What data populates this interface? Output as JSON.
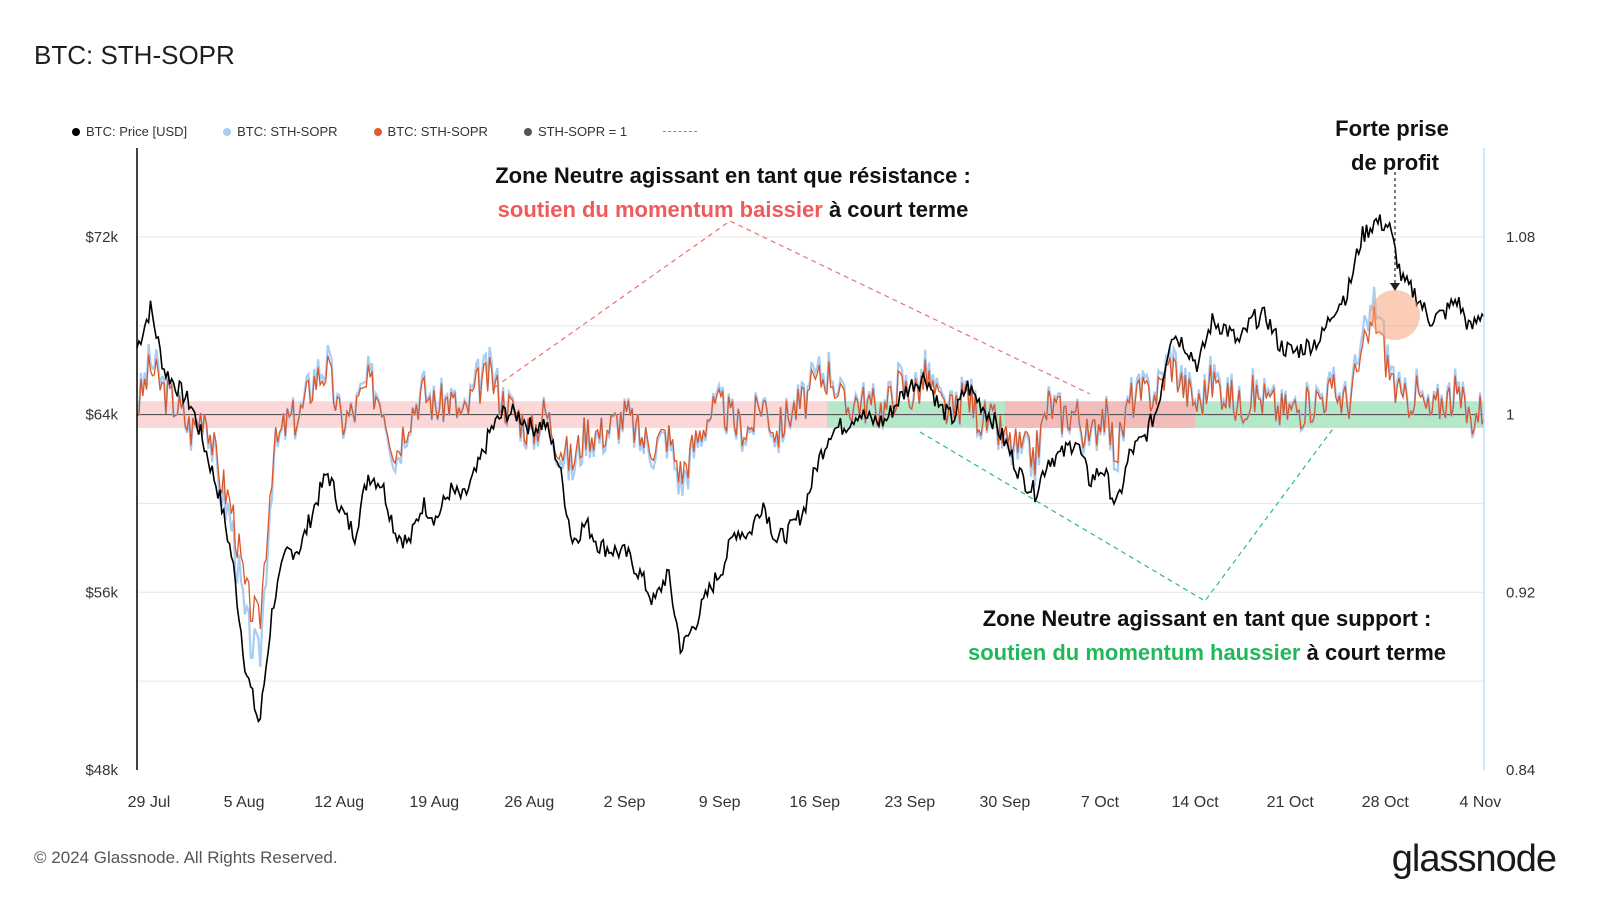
{
  "title": "BTC: STH-SOPR",
  "legend": [
    {
      "label": "BTC: Price [USD]",
      "color": "#000000"
    },
    {
      "label": "BTC: STH-SOPR",
      "color": "#a9cdf2"
    },
    {
      "label": "BTC: STH-SOPR",
      "color": "#e05a2e"
    },
    {
      "label": "STH-SOPR = 1",
      "color": "#555555"
    }
  ],
  "annotations": {
    "resistance_line1": "Zone Neutre agissant en tant que résistance :",
    "resistance_red": "soutien du momentum baissier",
    "resistance_tail": " à court terme",
    "support_line1": "Zone Neutre agissant en tant que support :",
    "support_green": "soutien du momentum haussier",
    "support_tail": " à court terme",
    "profit_line1": "Forte prise",
    "profit_line2": "de profit"
  },
  "footer": "© 2024 Glassnode. All Rights Reserved.",
  "brand": "glassnode",
  "colors": {
    "resistance": "#f05a5a",
    "support": "#1fb85b",
    "price": "#000000",
    "sopr_light": "#a9cdf2",
    "sopr_dark": "#d9582b"
  },
  "chart_data": {
    "type": "line",
    "xlabel": "",
    "ylabel": "",
    "x_ticks": [
      "29 Jul",
      "5 Aug",
      "12 Aug",
      "19 Aug",
      "26 Aug",
      "2 Sep",
      "9 Sep",
      "16 Sep",
      "23 Sep",
      "30 Sep",
      "7 Oct",
      "14 Oct",
      "21 Oct",
      "28 Oct",
      "4 Nov"
    ],
    "y_left_ticks": [
      "$72k",
      "$64k",
      "$56k",
      "$48k"
    ],
    "y_left_range": [
      48000,
      76000
    ],
    "y_right_ticks": [
      "1.08",
      "1",
      "0.92",
      "0.84"
    ],
    "y_right_range": [
      0.84,
      1.12
    ],
    "neutral_band": [
      0.994,
      1.006
    ],
    "series": [
      {
        "name": "BTC: Price [USD]",
        "values": [
          67000,
          68800,
          66000,
          65200,
          64400,
          62500,
          60500,
          57500,
          52500,
          50000,
          55500,
          57800,
          58000,
          59800,
          61400,
          59700,
          58600,
          61300,
          60900,
          58700,
          58200,
          60000,
          59300,
          60600,
          60200,
          61500,
          63300,
          64100,
          64000,
          63400,
          63600,
          61800,
          58300,
          59100,
          58100,
          57900,
          57700,
          56800,
          55500,
          56900,
          53400,
          54600,
          56000,
          57100,
          58800,
          58600,
          60100,
          58300,
          58800,
          59700,
          61800,
          63300,
          63500,
          64100,
          63700,
          63700,
          64700,
          65400,
          65700,
          64300,
          63800,
          65300,
          64500,
          63700,
          62500,
          61200,
          60500,
          62000,
          62200,
          62900,
          61000,
          61600,
          59800,
          62300,
          62900,
          64300,
          67700,
          67200,
          66200,
          68200,
          67900,
          67200,
          68300,
          68400,
          67100,
          66800,
          67100,
          67400,
          68800,
          69500,
          72000,
          72700,
          72500,
          70000,
          69400,
          68300,
          68500,
          69200,
          67800,
          68700
        ]
      },
      {
        "name": "BTC: STH-SOPR",
        "values": [
          1.003,
          1.025,
          1.012,
          1.004,
          0.992,
          1.003,
          0.97,
          0.95,
          0.905,
          0.888,
          0.98,
          0.996,
          1.0,
          1.018,
          1.024,
          0.996,
          1.002,
          1.016,
          1.008,
          0.98,
          1.0,
          1.012,
          1.004,
          1.008,
          0.998,
          1.015,
          1.02,
          1.006,
          1.0,
          0.99,
          1.002,
          0.985,
          0.975,
          0.992,
          0.99,
          0.995,
          1.0,
          0.988,
          0.985,
          0.99,
          0.968,
          0.985,
          1.0,
          1.004,
          0.995,
          0.992,
          1.008,
          0.99,
          1.002,
          1.006,
          1.018,
          1.022,
          1.003,
          1.008,
          1.004,
          1.003,
          1.016,
          1.01,
          1.02,
          1.005,
          1.0,
          1.012,
          0.998,
          0.995,
          0.985,
          0.982,
          0.978,
          1.006,
          1.0,
          1.002,
          0.985,
          1.003,
          0.98,
          1.008,
          1.01,
          1.012,
          1.028,
          1.014,
          1.005,
          1.018,
          1.012,
          1.004,
          1.01,
          1.008,
          1.002,
          1.003,
          1.004,
          1.01,
          1.012,
          1.006,
          1.03,
          1.052,
          1.024,
          1.005,
          1.012,
          1.0,
          1.008,
          1.01,
          0.998,
          1.004
        ]
      }
    ]
  }
}
